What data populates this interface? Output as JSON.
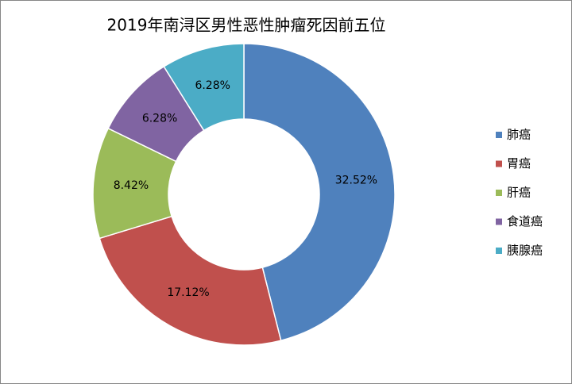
{
  "chart_data": {
    "type": "donut",
    "title": "2019年南浔区男性恶性肿瘤死因前五位",
    "categories": [
      "肺癌",
      "胃癌",
      "肝癌",
      "食道癌",
      "胰腺癌"
    ],
    "values": [
      32.52,
      17.12,
      8.42,
      6.28,
      6.28
    ],
    "value_labels": [
      "32.52%",
      "17.12%",
      "8.42%",
      "6.28%",
      "6.28%"
    ],
    "colors": [
      "#4f81bd",
      "#c0504d",
      "#9bbb59",
      "#8064a2",
      "#4bacc6"
    ],
    "legend": "right"
  }
}
